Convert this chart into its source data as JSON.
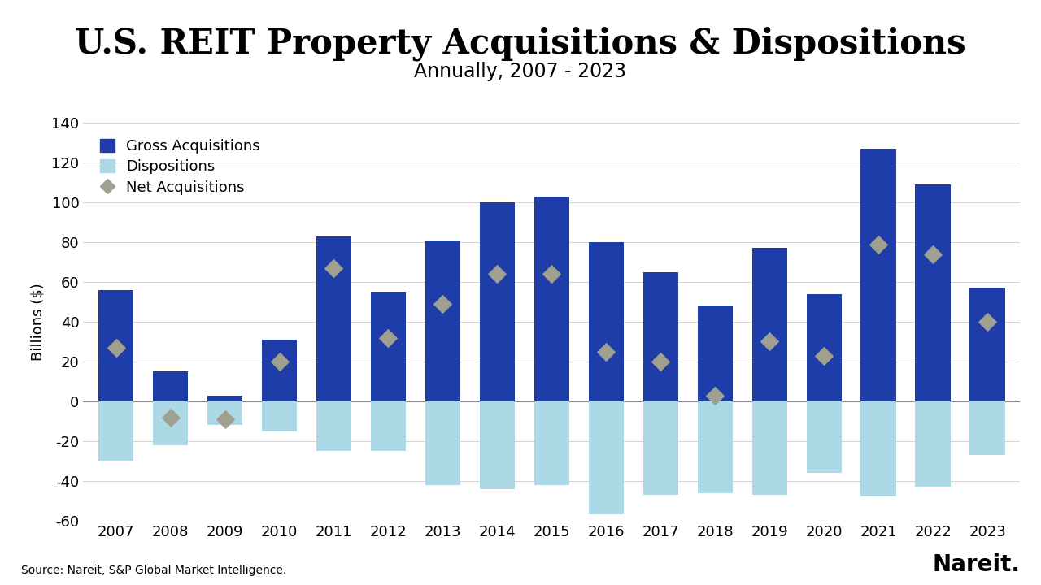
{
  "years": [
    2007,
    2008,
    2009,
    2010,
    2011,
    2012,
    2013,
    2014,
    2015,
    2016,
    2017,
    2018,
    2019,
    2020,
    2021,
    2022,
    2023
  ],
  "gross_acquisitions": [
    56,
    15,
    3,
    31,
    83,
    55,
    81,
    100,
    103,
    80,
    65,
    48,
    77,
    54,
    127,
    109,
    57
  ],
  "dispositions": [
    -30,
    -22,
    -12,
    -15,
    -25,
    -25,
    -42,
    -44,
    -42,
    -57,
    -47,
    -46,
    -47,
    -36,
    -48,
    -43,
    -27
  ],
  "net_acquisitions": [
    27,
    -8,
    -9,
    20,
    67,
    32,
    49,
    64,
    64,
    25,
    20,
    3,
    30,
    23,
    79,
    74,
    40
  ],
  "title": "U.S. REIT Property Acquisitions & Dispositions",
  "subtitle": "Annually, 2007 - 2023",
  "ylabel": "Billions ($)",
  "source": "Source: Nareit, S&P Global Market Intelligence.",
  "nareit_label": "Nareit.",
  "bar_color_gross": "#1f3da8",
  "bar_color_disp": "#add8e6",
  "diamond_color": "#a0a090",
  "ylim_min": -60,
  "ylim_max": 140,
  "yticks": [
    -60,
    -40,
    -20,
    0,
    20,
    40,
    60,
    80,
    100,
    120,
    140
  ],
  "legend_gross": "Gross Acquisitions",
  "legend_disp": "Dispositions",
  "legend_net": "Net Acquisitions",
  "title_fontsize": 30,
  "subtitle_fontsize": 17,
  "axis_label_fontsize": 13,
  "tick_fontsize": 13,
  "legend_fontsize": 13,
  "source_fontsize": 10,
  "nareit_fontsize": 20,
  "background_color": "#ffffff",
  "bar_width": 0.65
}
